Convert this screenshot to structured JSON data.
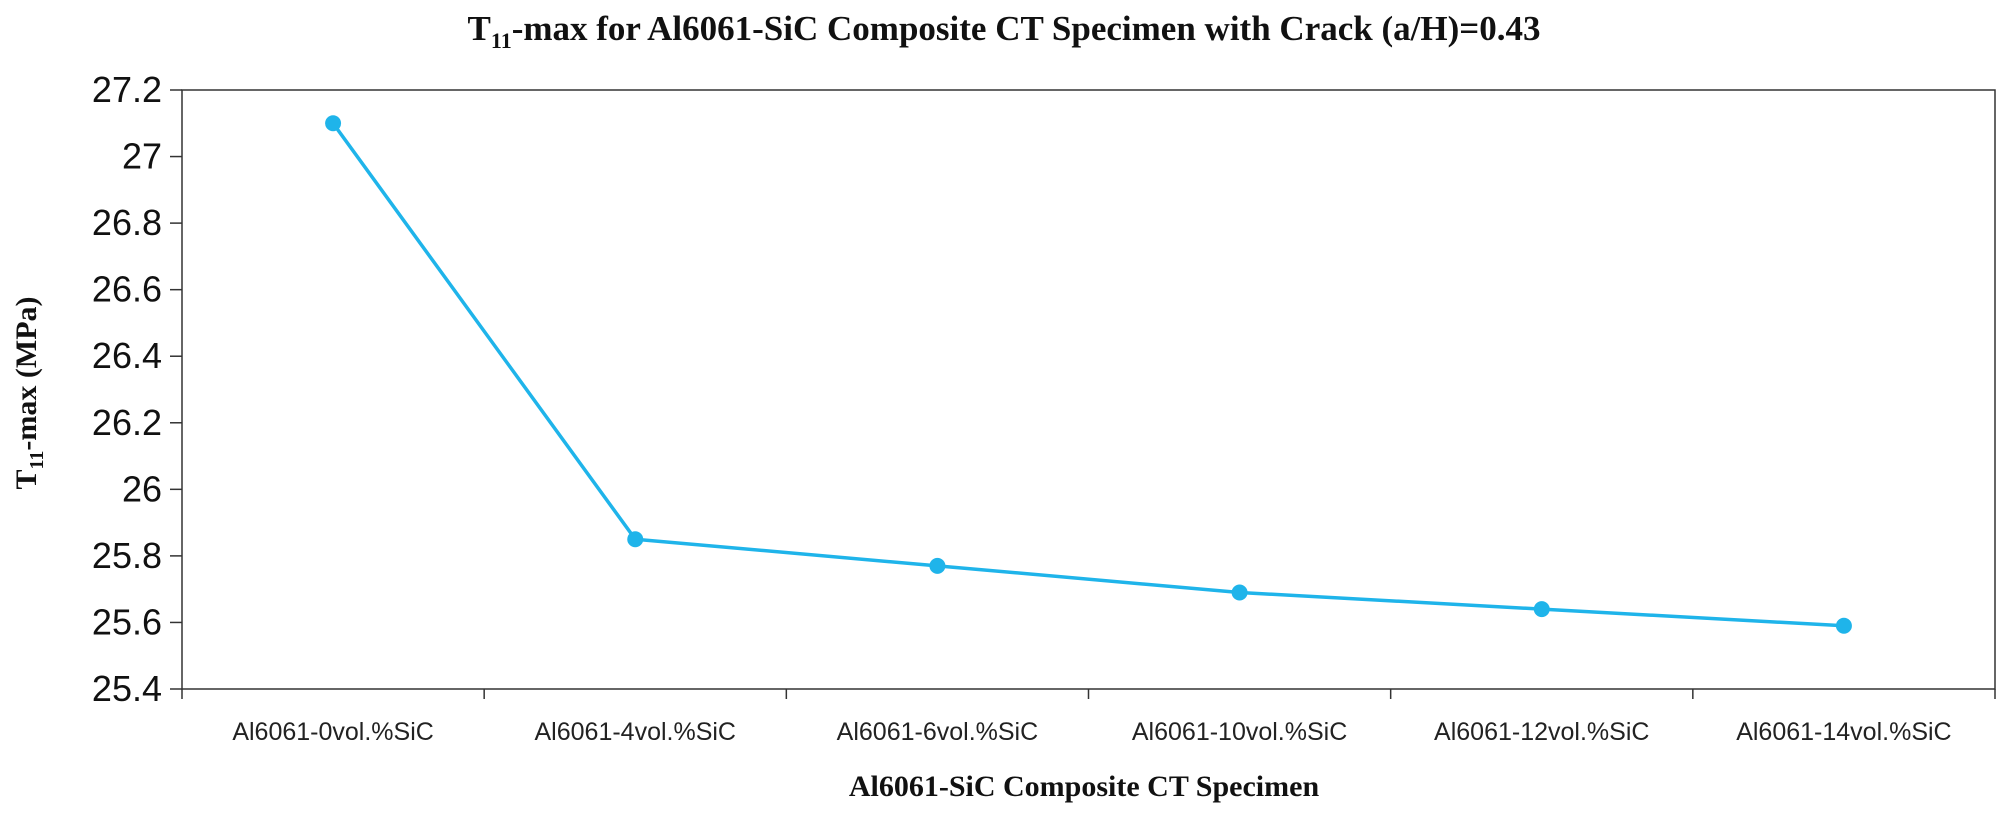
{
  "chart_data": {
    "type": "line",
    "title": {
      "main": "T",
      "sub": "11",
      "rest": "-max for Al6061-SiC Composite CT Specimen with Crack (a/H)=0.43"
    },
    "ylabel": {
      "main": "T",
      "sub": "11",
      "rest": "-max (MPa)"
    },
    "xlabel": "Al6061-SiC Composite CT Specimen",
    "categories": [
      "Al6061-0vol.%SiC",
      "Al6061-4vol.%SiC",
      "Al6061-6vol.%SiC",
      "Al6061-10vol.%SiC",
      "Al6061-12vol.%SiC",
      "Al6061-14vol.%SiC"
    ],
    "series": [
      {
        "name": "T11-max",
        "color": "#1fb4ea",
        "values": [
          27.1,
          25.85,
          25.77,
          25.69,
          25.64,
          25.59
        ]
      }
    ],
    "ylim": [
      25.4,
      27.2
    ],
    "yticks": [
      "25.4",
      "25.6",
      "25.8",
      "26",
      "26.2",
      "26.4",
      "26.6",
      "26.8",
      "27",
      "27.2"
    ],
    "grid": false,
    "legend": "none"
  }
}
